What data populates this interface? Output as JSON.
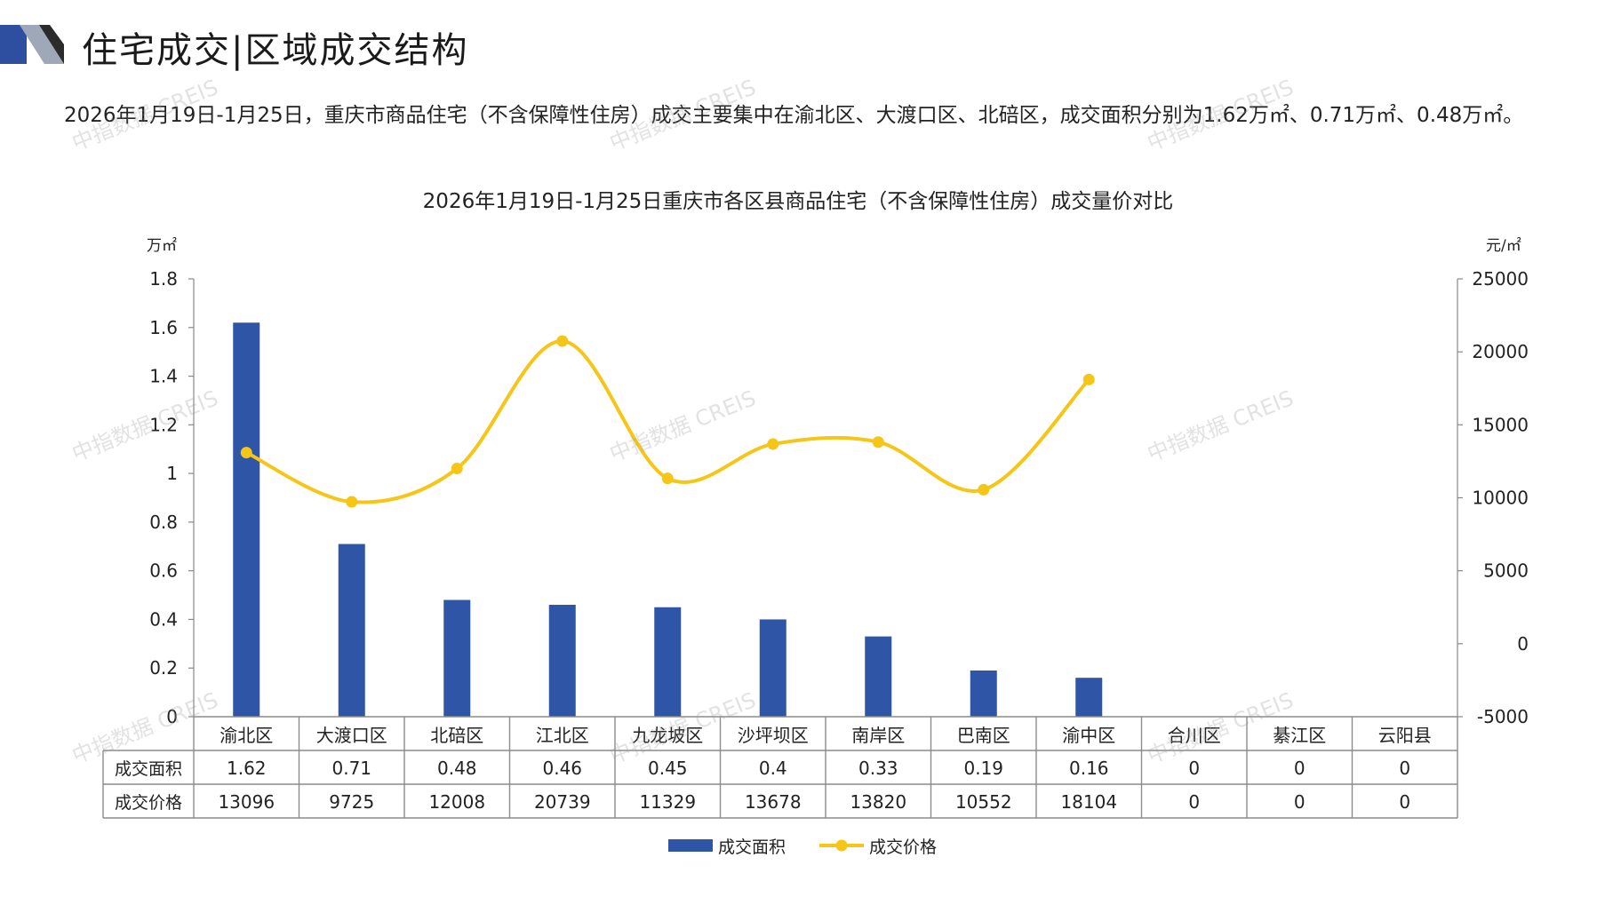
{
  "header": {
    "title": "住宅成交|区域成交结构"
  },
  "summary": "2026年1月19日-1月25日，重庆市商品住宅（不含保障性住房）成交主要集中在渝北区、大渡口区、北碚区，成交面积分别为1.62万㎡、0.71万㎡、0.48万㎡。",
  "watermark": "中指数据 CREIS",
  "colors": {
    "bar": "#2E55A6",
    "line": "#F5C518",
    "axis": "#888888",
    "table_border": "#8c8c8c"
  },
  "chart_data": {
    "type": "bar",
    "title": "2026年1月19日-1月25日重庆市各区县商品住宅（不含保障性住房）成交量价对比",
    "categories": [
      "渝北区",
      "大渡口区",
      "北碚区",
      "江北区",
      "九龙坡区",
      "沙坪坝区",
      "南岸区",
      "巴南区",
      "渝中区",
      "合川区",
      "綦江区",
      "云阳县"
    ],
    "y_left": {
      "unit": "万㎡",
      "range": [
        0,
        1.8
      ],
      "ticks": [
        "0",
        "0.2",
        "0.4",
        "0.6",
        "0.8",
        "1",
        "1.2",
        "1.4",
        "1.6",
        "1.8"
      ]
    },
    "y_right": {
      "unit": "元/㎡",
      "range": [
        -5000,
        25000
      ],
      "ticks": [
        "-5000",
        "0",
        "5000",
        "10000",
        "15000",
        "20000",
        "25000"
      ]
    },
    "series": [
      {
        "name": "成交面积",
        "type": "bar",
        "axis": "left",
        "values": [
          1.62,
          0.71,
          0.48,
          0.46,
          0.45,
          0.4,
          0.33,
          0.19,
          0.16,
          0,
          0,
          0
        ],
        "labels": [
          "1.62",
          "0.71",
          "0.48",
          "0.46",
          "0.45",
          "0.4",
          "0.33",
          "0.19",
          "0.16",
          "0",
          "0",
          "0"
        ]
      },
      {
        "name": "成交价格",
        "type": "line",
        "axis": "right",
        "values": [
          13096,
          9725,
          12008,
          20739,
          11329,
          13678,
          13820,
          10552,
          18104,
          0,
          0,
          0
        ],
        "labels": [
          "13096",
          "9725",
          "12008",
          "20739",
          "11329",
          "13678",
          "13820",
          "10552",
          "18104",
          "0",
          "0",
          "0"
        ],
        "plotted_points": 9
      }
    ],
    "legend_position": "bottom-center",
    "grid": false
  }
}
